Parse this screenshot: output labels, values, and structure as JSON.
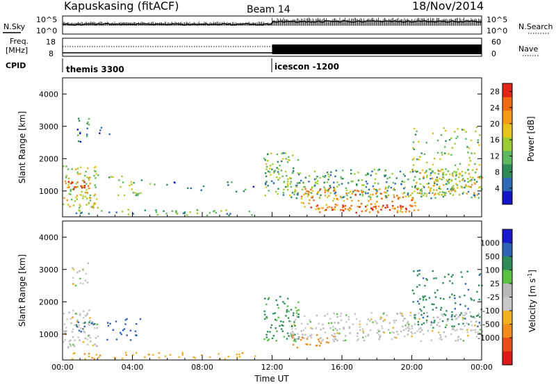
{
  "header": {
    "station": "Kapuskasing (fitACF)",
    "beam": "Beam 14",
    "date": "18/Nov/2014"
  },
  "noise_panel": {
    "left_label": "N.Sky",
    "left_ticks": [
      "10^5",
      "10^0"
    ],
    "right_label": "N.Search",
    "right_ticks": [
      "10^5",
      "10^0"
    ]
  },
  "freq_panel": {
    "left_label_line1": "Freq.",
    "left_label_line2": "[MHz]",
    "left_ticks": [
      "18",
      "8"
    ],
    "right_label": "Nave",
    "right_ticks": [
      "60",
      "0"
    ]
  },
  "cpid": {
    "label": "CPID",
    "segments": [
      {
        "name": "themis 3300",
        "start_hour": 0
      },
      {
        "name": "icescon -1200",
        "start_hour": 12
      }
    ]
  },
  "colors": {
    "power_scale": [
      "#1515c8",
      "#2d6ab5",
      "#2e8b57",
      "#5fb85f",
      "#9ccd32",
      "#e6c41c",
      "#f39a19",
      "#f06a14",
      "#e02418"
    ],
    "velocity_scale": [
      "#1a1acc",
      "#2f63b8",
      "#2e8b57",
      "#58c043",
      "#b8b8b8",
      "#c8c8c8",
      "#f0b020",
      "#f08c1a",
      "#e8501a",
      "#dd1a1a"
    ]
  },
  "chart_data": [
    {
      "type": "heatmap",
      "title": "",
      "xlabel": "",
      "ylabel": "Slant Range [km]",
      "x_ticks": [
        "00:00",
        "04:00",
        "08:00",
        "12:00",
        "16:00",
        "20:00",
        "00:00"
      ],
      "xlim_hours": [
        0,
        24
      ],
      "y_ticks": [
        1000,
        2000,
        3000,
        4000
      ],
      "ylim": [
        200,
        4500
      ],
      "colorbar": {
        "label": "Power [dB]",
        "ticks": [
          4,
          8,
          12,
          16,
          20,
          24,
          28
        ],
        "range": [
          0,
          30
        ]
      },
      "regions": [
        {
          "x": [
            0.0,
            2.0
          ],
          "y": [
            500,
            1800
          ],
          "value": 16,
          "density": 0.7
        },
        {
          "x": [
            0.3,
            1.6
          ],
          "y": [
            1050,
            1350
          ],
          "value": 26,
          "density": 0.8
        },
        {
          "x": [
            0.8,
            1.5
          ],
          "y": [
            2500,
            3300
          ],
          "value": 6,
          "density": 0.5
        },
        {
          "x": [
            2.0,
            2.8
          ],
          "y": [
            2700,
            3000
          ],
          "value": 5,
          "density": 0.3
        },
        {
          "x": [
            2.5,
            4.5
          ],
          "y": [
            800,
            1500
          ],
          "value": 14,
          "density": 0.3
        },
        {
          "x": [
            0.5,
            11.0
          ],
          "y": [
            250,
            450
          ],
          "value": 10,
          "density": 0.4
        },
        {
          "x": [
            4.5,
            11.0
          ],
          "y": [
            1000,
            1300
          ],
          "value": 8,
          "density": 0.15
        },
        {
          "x": [
            11.5,
            13.5
          ],
          "y": [
            800,
            2200
          ],
          "value": 12,
          "density": 0.6
        },
        {
          "x": [
            13.0,
            24.0
          ],
          "y": [
            800,
            1700
          ],
          "value": 10,
          "density": 0.55
        },
        {
          "x": [
            13.5,
            20.5
          ],
          "y": [
            350,
            1100
          ],
          "value": 22,
          "density": 0.5
        },
        {
          "x": [
            15.0,
            20.0
          ],
          "y": [
            400,
            600
          ],
          "value": 27,
          "density": 0.7
        },
        {
          "x": [
            20.0,
            24.0
          ],
          "y": [
            900,
            1700
          ],
          "value": 18,
          "density": 0.6
        },
        {
          "x": [
            20.0,
            24.0
          ],
          "y": [
            1800,
            3000
          ],
          "value": 14,
          "density": 0.25
        }
      ]
    },
    {
      "type": "heatmap",
      "title": "",
      "xlabel": "Time UT",
      "ylabel": "Slant Range [km]",
      "x_ticks": [
        "00:00",
        "04:00",
        "08:00",
        "12:00",
        "16:00",
        "20:00",
        "00:00"
      ],
      "xlim_hours": [
        0,
        24
      ],
      "y_ticks": [
        1000,
        2000,
        3000,
        4000
      ],
      "ylim": [
        200,
        4500
      ],
      "colorbar": {
        "label": "Velocity [m s^-1]",
        "ticks": [
          "1000",
          "500",
          "100",
          "25",
          "-25",
          "-100",
          "-500",
          "-1000"
        ]
      },
      "regions": [
        {
          "x": [
            0.0,
            2.0
          ],
          "y": [
            600,
            1800
          ],
          "value": 0,
          "density": 0.6
        },
        {
          "x": [
            0.5,
            2.0
          ],
          "y": [
            1100,
            1400
          ],
          "value": 120,
          "density": 0.6
        },
        {
          "x": [
            0.5,
            1.5
          ],
          "y": [
            2500,
            3300
          ],
          "value": 0,
          "density": 0.4
        },
        {
          "x": [
            2.5,
            4.5
          ],
          "y": [
            800,
            1500
          ],
          "value": 150,
          "density": 0.3
        },
        {
          "x": [
            0.5,
            11.0
          ],
          "y": [
            250,
            450
          ],
          "value": -80,
          "density": 0.4
        },
        {
          "x": [
            11.5,
            13.5
          ],
          "y": [
            800,
            2200
          ],
          "value": 60,
          "density": 0.5
        },
        {
          "x": [
            13.0,
            24.0
          ],
          "y": [
            800,
            1700
          ],
          "value": 0,
          "density": 0.55
        },
        {
          "x": [
            13.0,
            15.5
          ],
          "y": [
            600,
            1000
          ],
          "value": -200,
          "density": 0.4
        },
        {
          "x": [
            20.0,
            24.0
          ],
          "y": [
            1200,
            3000
          ],
          "value": 80,
          "density": 0.3
        }
      ]
    }
  ]
}
